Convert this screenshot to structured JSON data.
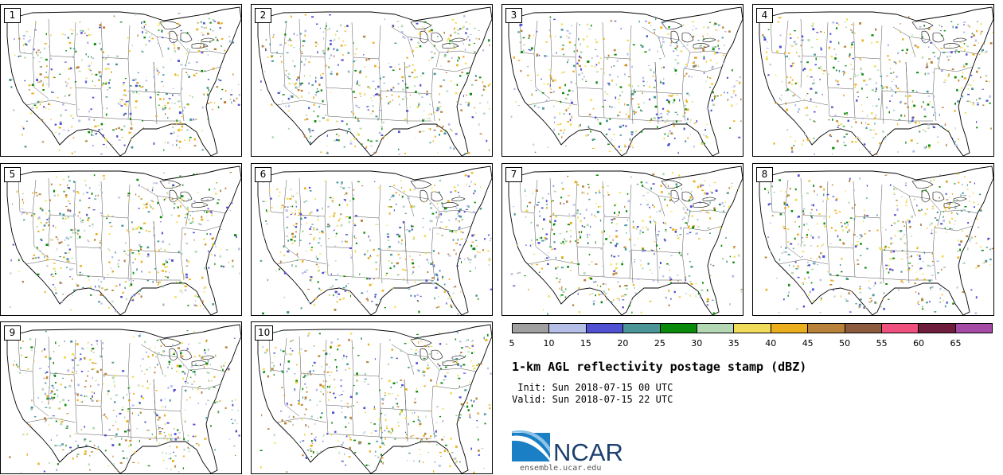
{
  "panels": [
    {
      "label": "1"
    },
    {
      "label": "2"
    },
    {
      "label": "3"
    },
    {
      "label": "4"
    },
    {
      "label": "5"
    },
    {
      "label": "6"
    },
    {
      "label": "7"
    },
    {
      "label": "8"
    },
    {
      "label": "9"
    },
    {
      "label": "10"
    }
  ],
  "colorbar": {
    "colors": [
      "#a0a0a0",
      "#b4bee6",
      "#5050d2",
      "#4a9696",
      "#0a8a0a",
      "#b4d7b4",
      "#f0dc5a",
      "#ebaf1e",
      "#b9823a",
      "#8c5a3c",
      "#f0507d",
      "#6e1e3c",
      "#a54ba5"
    ],
    "ticks": [
      "5",
      "10",
      "15",
      "20",
      "25",
      "30",
      "35",
      "40",
      "45",
      "50",
      "55",
      "60",
      "65"
    ]
  },
  "title": "1-km AGL reflectivity postage stamp (dBZ)",
  "init": " Init: Sun 2018-07-15 00 UTC",
  "valid": "Valid: Sun 2018-07-15 22 UTC",
  "logo": {
    "text": "NCAR",
    "url": "ensemble.ucar.edu"
  }
}
